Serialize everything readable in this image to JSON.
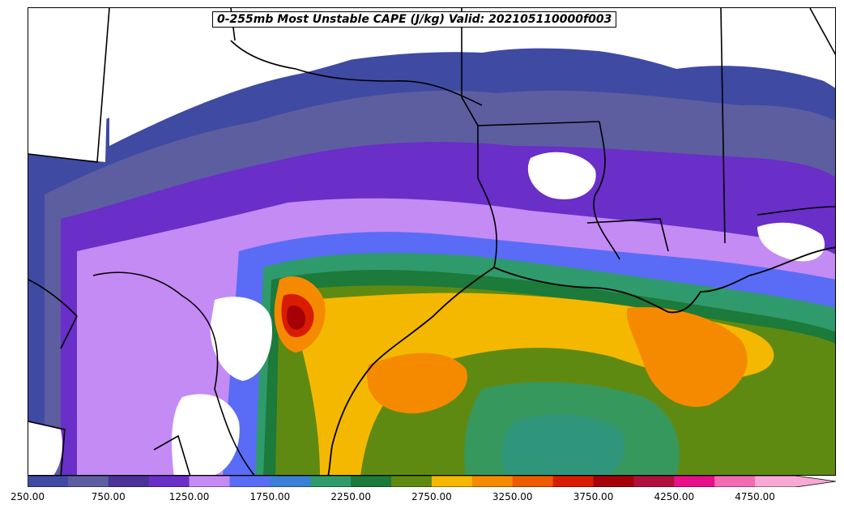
{
  "map": {
    "title": "0-255mb Most Unstable CAPE (J/kg) Valid: 202105110000f003",
    "palette": {
      "250": "#3f4aa3",
      "500": "#5c5ea0",
      "750": "#4b3298",
      "1000": "#6a2ec9",
      "1250": "#c48bf5",
      "1500": "#5a6cf5",
      "1750": "#3a7fd6",
      "2000": "#2f9a6b",
      "2250": "#1c7a3a",
      "2500": "#5f8a12",
      "2750": "#f5b800",
      "3000": "#f58a00",
      "3250": "#ef5a00",
      "3500": "#d81c00",
      "3750": "#a50008",
      "4000": "#b0103c",
      "4250": "#e8108a",
      "4500": "#f36bb4",
      "4750": "#f7a8d4"
    }
  },
  "colorbar": {
    "levels": [
      250,
      500,
      750,
      1000,
      1250,
      1500,
      1750,
      2000,
      2250,
      2500,
      2750,
      3000,
      3250,
      3500,
      3750,
      4000,
      4250,
      4500,
      4750
    ],
    "colors": [
      "#3f4aa3",
      "#5c5ea0",
      "#4b3298",
      "#6a2ec9",
      "#c48bf5",
      "#5a6cf5",
      "#3a7fd6",
      "#2f9a6b",
      "#1c7a3a",
      "#5f8a12",
      "#f5b800",
      "#f58a00",
      "#ef5a00",
      "#d81c00",
      "#a50008",
      "#b0103c",
      "#e8108a",
      "#f36bb4",
      "#f7a8d4"
    ],
    "extend_color": "#f7a8d4",
    "tick_labels": [
      "250.00",
      "750.00",
      "1250.00",
      "1750.00",
      "2250.00",
      "2750.00",
      "3250.00",
      "3750.00",
      "4250.00",
      "4750.00"
    ]
  }
}
